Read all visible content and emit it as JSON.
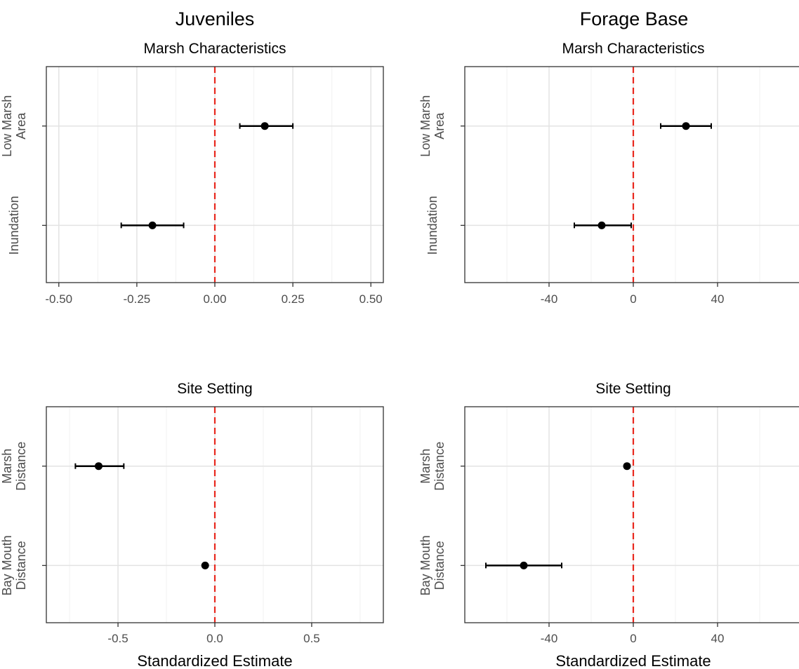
{
  "column_titles": [
    "Juveniles",
    "Forage Base"
  ],
  "x_axis_title": "Standardized Estimate",
  "reference_line_color": "#e8281e",
  "point_color": "#000000",
  "chart_data": [
    {
      "type": "scatter",
      "subtitle": "Marsh Characteristics",
      "group": "Juveniles",
      "categories": [
        [
          "Low Marsh",
          "Area"
        ],
        [
          "Inundation"
        ]
      ],
      "estimates": [
        0.16,
        -0.2
      ],
      "lower": [
        0.08,
        -0.3
      ],
      "upper": [
        0.25,
        -0.1
      ],
      "xlim": [
        -0.54,
        0.54
      ],
      "xticks": [
        -0.5,
        -0.25,
        0,
        0.25,
        0.5
      ],
      "xtick_labels": [
        "-0.50",
        "-0.25",
        "0.00",
        "0.25",
        "0.50"
      ],
      "xlabel": "",
      "reference_line": 0,
      "grid": true
    },
    {
      "type": "scatter",
      "subtitle": "Marsh Characteristics",
      "group": "Forage Base",
      "categories": [
        [
          "Low Marsh",
          "Area"
        ],
        [
          "Inundation"
        ]
      ],
      "estimates": [
        25,
        -15
      ],
      "lower": [
        13,
        -28
      ],
      "upper": [
        37,
        -1
      ],
      "xlim": [
        -80,
        80
      ],
      "xticks": [
        -40,
        0,
        40
      ],
      "xtick_labels": [
        "-40",
        "0",
        "40"
      ],
      "xlabel": "",
      "reference_line": 0,
      "grid": true
    },
    {
      "type": "scatter",
      "subtitle": "Site Setting",
      "group": "Juveniles",
      "categories": [
        [
          "Marsh",
          "Distance"
        ],
        [
          "Bay Mouth",
          "Distance"
        ]
      ],
      "estimates": [
        -0.6,
        -0.05
      ],
      "lower": [
        -0.72,
        -0.06
      ],
      "upper": [
        -0.47,
        -0.04
      ],
      "xlim": [
        -0.87,
        0.87
      ],
      "xticks": [
        -0.5,
        0,
        0.5
      ],
      "xtick_labels": [
        "-0.5",
        "0.0",
        "0.5"
      ],
      "xlabel": "Standardized Estimate",
      "reference_line": 0,
      "grid": true
    },
    {
      "type": "scatter",
      "subtitle": "Site Setting",
      "group": "Forage Base",
      "categories": [
        [
          "Marsh",
          "Distance"
        ],
        [
          "Bay Mouth",
          "Distance"
        ]
      ],
      "estimates": [
        -3,
        -52
      ],
      "lower": [
        -4,
        -70
      ],
      "upper": [
        -2,
        -34
      ],
      "xlim": [
        -80,
        80
      ],
      "xticks": [
        -40,
        0,
        40
      ],
      "xtick_labels": [
        "-40",
        "0",
        "40"
      ],
      "xlabel": "Standardized Estimate",
      "reference_line": 0,
      "grid": true
    }
  ]
}
